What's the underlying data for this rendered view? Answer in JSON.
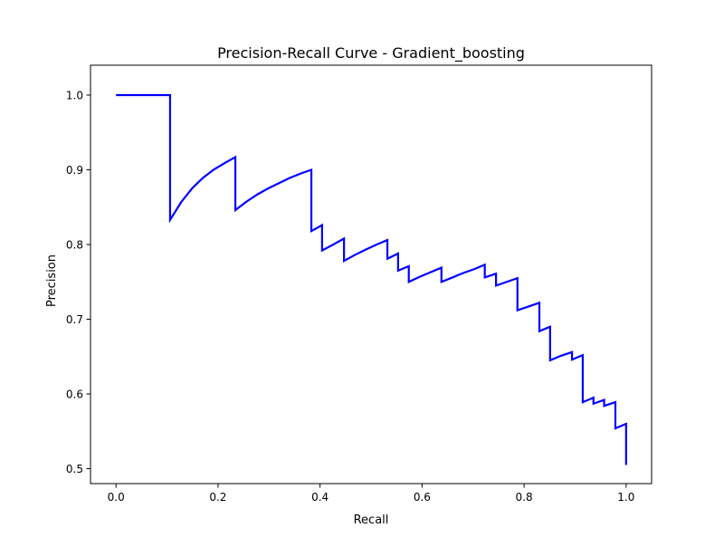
{
  "chart_data": {
    "type": "line",
    "title": "Precision-Recall Curve - Gradient_boosting",
    "xlabel": "Recall",
    "ylabel": "Precision",
    "xlim": [
      -0.05,
      1.05
    ],
    "ylim": [
      0.48,
      1.04
    ],
    "xticks": [
      0.0,
      0.2,
      0.4,
      0.6,
      0.8,
      1.0
    ],
    "xtick_labels": [
      "0.0",
      "0.2",
      "0.4",
      "0.6",
      "0.8",
      "1.0"
    ],
    "yticks": [
      0.5,
      0.6,
      0.7,
      0.8,
      0.9,
      1.0
    ],
    "ytick_labels": [
      "0.5",
      "0.6",
      "0.7",
      "0.8",
      "0.9",
      "1.0"
    ],
    "grid": false,
    "legend": "none",
    "series": [
      {
        "color": "#0000ff",
        "x": [
          0.0,
          0.106,
          0.106,
          0.128,
          0.149,
          0.17,
          0.191,
          0.213,
          0.234,
          0.234,
          0.255,
          0.277,
          0.298,
          0.319,
          0.34,
          0.362,
          0.383,
          0.383,
          0.404,
          0.404,
          0.426,
          0.447,
          0.447,
          0.468,
          0.489,
          0.511,
          0.532,
          0.532,
          0.553,
          0.553,
          0.574,
          0.574,
          0.596,
          0.617,
          0.638,
          0.638,
          0.66,
          0.681,
          0.702,
          0.723,
          0.723,
          0.745,
          0.745,
          0.766,
          0.787,
          0.787,
          0.809,
          0.83,
          0.83,
          0.851,
          0.851,
          0.872,
          0.894,
          0.894,
          0.915,
          0.915,
          0.936,
          0.936,
          0.957,
          0.957,
          0.979,
          0.979,
          1.0,
          1.0
        ],
        "y": [
          1.0,
          1.0,
          0.833,
          0.857,
          0.875,
          0.889,
          0.9,
          0.909,
          0.917,
          0.846,
          0.857,
          0.867,
          0.875,
          0.882,
          0.889,
          0.895,
          0.9,
          0.818,
          0.826,
          0.792,
          0.8,
          0.808,
          0.778,
          0.786,
          0.793,
          0.8,
          0.806,
          0.781,
          0.788,
          0.765,
          0.771,
          0.75,
          0.757,
          0.763,
          0.769,
          0.75,
          0.756,
          0.762,
          0.767,
          0.773,
          0.756,
          0.761,
          0.745,
          0.75,
          0.755,
          0.712,
          0.717,
          0.722,
          0.684,
          0.69,
          0.645,
          0.651,
          0.656,
          0.646,
          0.652,
          0.589,
          0.595,
          0.587,
          0.592,
          0.584,
          0.589,
          0.554,
          0.56,
          0.505
        ]
      }
    ]
  }
}
